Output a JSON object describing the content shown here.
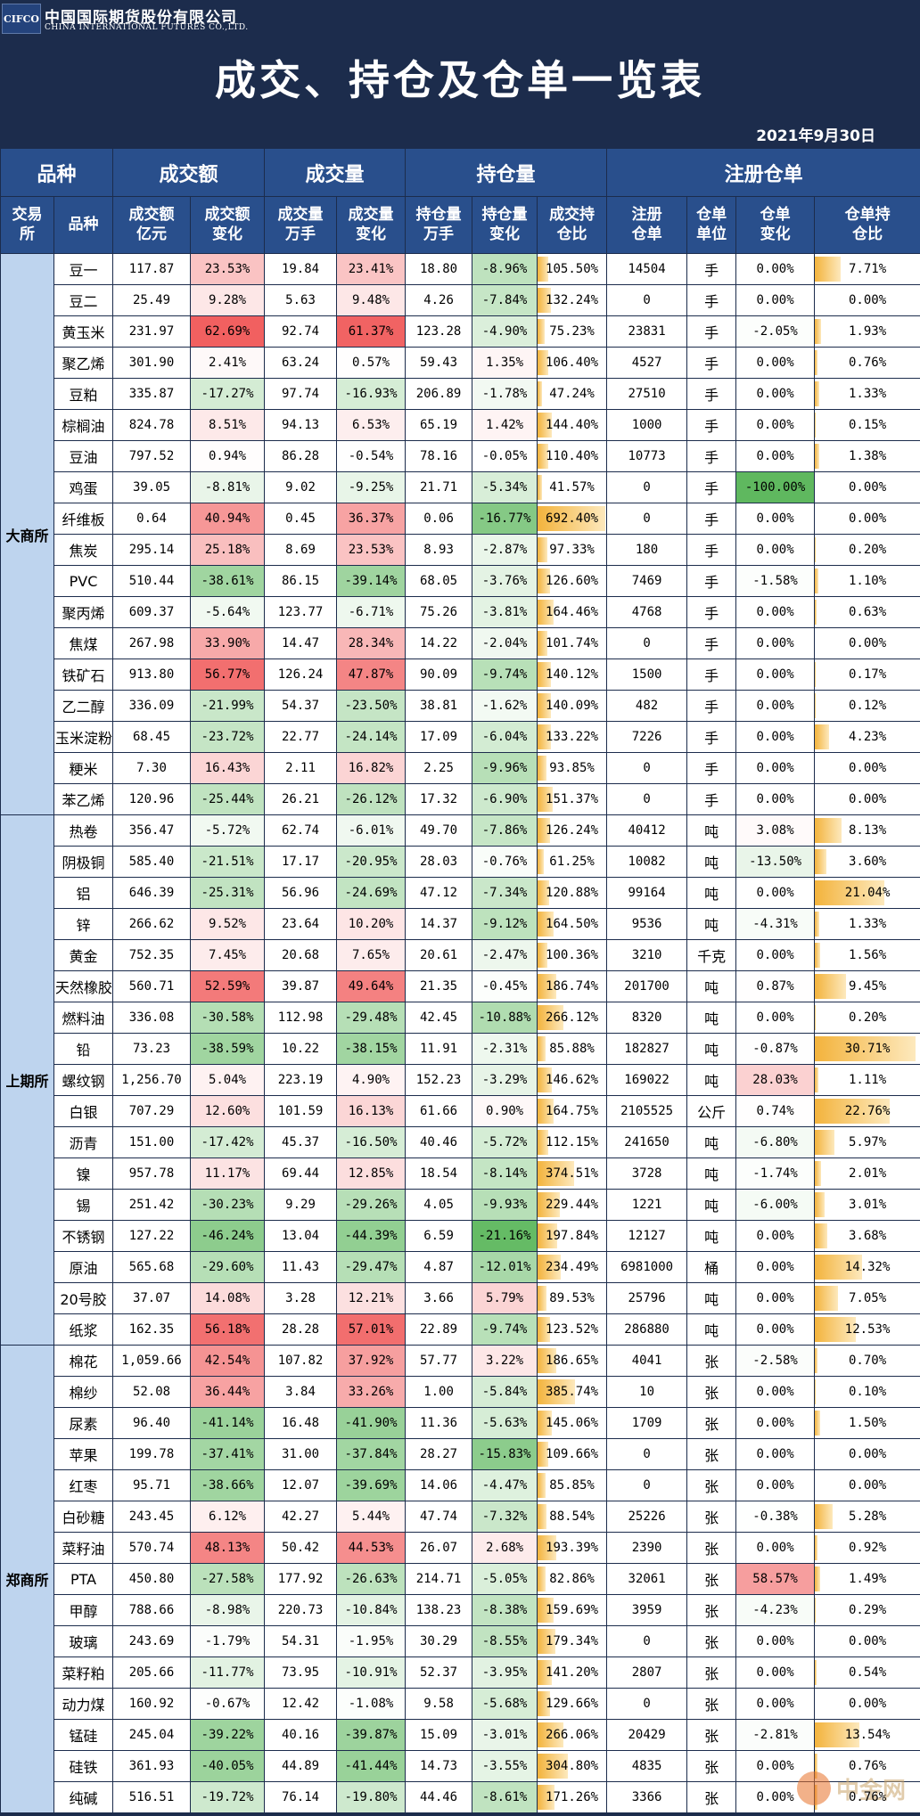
{
  "header": {
    "logo_text": "CIFCO",
    "company_cn": "中国国际期货股份有限公司",
    "company_en": "CHINA INTERNATIONAL FUTURES CO.,LTD.",
    "title": "成交、持仓及仓单一览表",
    "date": "2021年9月30日"
  },
  "groups": [
    "品种",
    "成交额",
    "成交量",
    "持仓量",
    "注册仓单"
  ],
  "columns": [
    "交易所",
    "品种",
    "成交额亿元",
    "成交额变化",
    "成交量万手",
    "成交量变化",
    "持仓量万手",
    "持仓量变化",
    "成交持仓比",
    "注册仓单",
    "仓单单位",
    "仓单变化",
    "仓单持仓比"
  ],
  "colors": {
    "header_bg": "#1c2c4c",
    "group_bg": "#294f8c",
    "exchange_bg": "#bed4ee",
    "pos_max": "#f05a5a",
    "neg_max": "#5fb85f",
    "bar": "#f3b33c"
  },
  "exchanges": [
    {
      "name": "大商所",
      "rows": [
        [
          "豆一",
          "117.87",
          "23.53%",
          "19.84",
          "23.41%",
          "18.80",
          "-8.96%",
          "105.50%",
          "14504",
          "手",
          "0.00%",
          "7.71%"
        ],
        [
          "豆二",
          "25.49",
          "9.28%",
          "5.63",
          "9.48%",
          "4.26",
          "-7.84%",
          "132.24%",
          "0",
          "手",
          "0.00%",
          "0.00%"
        ],
        [
          "黄玉米",
          "231.97",
          "62.69%",
          "92.74",
          "61.37%",
          "123.28",
          "-4.90%",
          "75.23%",
          "23831",
          "手",
          "-2.05%",
          "1.93%"
        ],
        [
          "聚乙烯",
          "301.90",
          "2.41%",
          "63.24",
          "0.57%",
          "59.43",
          "1.35%",
          "106.40%",
          "4527",
          "手",
          "0.00%",
          "0.76%"
        ],
        [
          "豆粕",
          "335.87",
          "-17.27%",
          "97.74",
          "-16.93%",
          "206.89",
          "-1.78%",
          "47.24%",
          "27510",
          "手",
          "0.00%",
          "1.33%"
        ],
        [
          "棕榈油",
          "824.78",
          "8.51%",
          "94.13",
          "6.53%",
          "65.19",
          "1.42%",
          "144.40%",
          "1000",
          "手",
          "0.00%",
          "0.15%"
        ],
        [
          "豆油",
          "797.52",
          "0.94%",
          "86.28",
          "-0.54%",
          "78.16",
          "-0.05%",
          "110.40%",
          "10773",
          "手",
          "0.00%",
          "1.38%"
        ],
        [
          "鸡蛋",
          "39.05",
          "-8.81%",
          "9.02",
          "-9.25%",
          "21.71",
          "-5.34%",
          "41.57%",
          "0",
          "手",
          "-100.00%",
          "0.00%"
        ],
        [
          "纤维板",
          "0.64",
          "40.94%",
          "0.45",
          "36.37%",
          "0.06",
          "-16.77%",
          "692.40%",
          "0",
          "手",
          "0.00%",
          "0.00%"
        ],
        [
          "焦炭",
          "295.14",
          "25.18%",
          "8.69",
          "23.53%",
          "8.93",
          "-2.87%",
          "97.33%",
          "180",
          "手",
          "0.00%",
          "0.20%"
        ],
        [
          "PVC",
          "510.44",
          "-38.61%",
          "86.15",
          "-39.14%",
          "68.05",
          "-3.76%",
          "126.60%",
          "7469",
          "手",
          "-1.58%",
          "1.10%"
        ],
        [
          "聚丙烯",
          "609.37",
          "-5.64%",
          "123.77",
          "-6.71%",
          "75.26",
          "-3.81%",
          "164.46%",
          "4768",
          "手",
          "0.00%",
          "0.63%"
        ],
        [
          "焦煤",
          "267.98",
          "33.90%",
          "14.47",
          "28.34%",
          "14.22",
          "-2.04%",
          "101.74%",
          "0",
          "手",
          "0.00%",
          "0.00%"
        ],
        [
          "铁矿石",
          "913.80",
          "56.77%",
          "126.24",
          "47.87%",
          "90.09",
          "-9.74%",
          "140.12%",
          "1500",
          "手",
          "0.00%",
          "0.17%"
        ],
        [
          "乙二醇",
          "336.09",
          "-21.99%",
          "54.37",
          "-23.50%",
          "38.81",
          "-1.62%",
          "140.09%",
          "482",
          "手",
          "0.00%",
          "0.12%"
        ],
        [
          "玉米淀粉",
          "68.45",
          "-23.72%",
          "22.77",
          "-24.14%",
          "17.09",
          "-6.04%",
          "133.22%",
          "7226",
          "手",
          "0.00%",
          "4.23%"
        ],
        [
          "粳米",
          "7.30",
          "16.43%",
          "2.11",
          "16.82%",
          "2.25",
          "-9.96%",
          "93.85%",
          "0",
          "手",
          "0.00%",
          "0.00%"
        ],
        [
          "苯乙烯",
          "120.96",
          "-25.44%",
          "26.21",
          "-26.12%",
          "17.32",
          "-6.90%",
          "151.37%",
          "0",
          "手",
          "0.00%",
          "0.00%"
        ]
      ]
    },
    {
      "name": "上期所",
      "rows": [
        [
          "热卷",
          "356.47",
          "-5.72%",
          "62.74",
          "-6.01%",
          "49.70",
          "-7.86%",
          "126.24%",
          "40412",
          "吨",
          "3.08%",
          "8.13%"
        ],
        [
          "阴极铜",
          "585.40",
          "-21.51%",
          "17.17",
          "-20.95%",
          "28.03",
          "-0.76%",
          "61.25%",
          "10082",
          "吨",
          "-13.50%",
          "3.60%"
        ],
        [
          "铝",
          "646.39",
          "-25.31%",
          "56.96",
          "-24.69%",
          "47.12",
          "-7.34%",
          "120.88%",
          "99164",
          "吨",
          "0.00%",
          "21.04%"
        ],
        [
          "锌",
          "266.62",
          "9.52%",
          "23.64",
          "10.20%",
          "14.37",
          "-9.12%",
          "164.50%",
          "9536",
          "吨",
          "-4.31%",
          "1.33%"
        ],
        [
          "黄金",
          "752.35",
          "7.45%",
          "20.68",
          "7.65%",
          "20.61",
          "-2.47%",
          "100.36%",
          "3210",
          "千克",
          "0.00%",
          "1.56%"
        ],
        [
          "天然橡胶",
          "560.71",
          "52.59%",
          "39.87",
          "49.64%",
          "21.35",
          "-0.45%",
          "186.74%",
          "201700",
          "吨",
          "0.87%",
          "9.45%"
        ],
        [
          "燃料油",
          "336.08",
          "-30.58%",
          "112.98",
          "-29.48%",
          "42.45",
          "-10.88%",
          "266.12%",
          "8320",
          "吨",
          "0.00%",
          "0.20%"
        ],
        [
          "铅",
          "73.23",
          "-38.59%",
          "10.22",
          "-38.15%",
          "11.91",
          "-2.31%",
          "85.88%",
          "182827",
          "吨",
          "-0.87%",
          "30.71%"
        ],
        [
          "螺纹钢",
          "1,256.70",
          "5.04%",
          "223.19",
          "4.90%",
          "152.23",
          "-3.29%",
          "146.62%",
          "169022",
          "吨",
          "28.03%",
          "1.11%"
        ],
        [
          "白银",
          "707.29",
          "12.60%",
          "101.59",
          "16.13%",
          "61.66",
          "0.90%",
          "164.75%",
          "2105525",
          "公斤",
          "0.74%",
          "22.76%"
        ],
        [
          "沥青",
          "151.00",
          "-17.42%",
          "45.37",
          "-16.50%",
          "40.46",
          "-5.72%",
          "112.15%",
          "241650",
          "吨",
          "-6.80%",
          "5.97%"
        ],
        [
          "镍",
          "957.78",
          "11.17%",
          "69.44",
          "12.85%",
          "18.54",
          "-8.14%",
          "374.51%",
          "3728",
          "吨",
          "-1.74%",
          "2.01%"
        ],
        [
          "锡",
          "251.42",
          "-30.23%",
          "9.29",
          "-29.26%",
          "4.05",
          "-9.93%",
          "229.44%",
          "1221",
          "吨",
          "-6.00%",
          "3.01%"
        ],
        [
          "不锈钢",
          "127.22",
          "-46.24%",
          "13.04",
          "-44.39%",
          "6.59",
          "-21.16%",
          "197.84%",
          "12127",
          "吨",
          "0.00%",
          "3.68%"
        ],
        [
          "原油",
          "565.68",
          "-29.60%",
          "11.43",
          "-29.47%",
          "4.87",
          "-12.01%",
          "234.49%",
          "6981000",
          "桶",
          "0.00%",
          "14.32%"
        ],
        [
          "20号胶",
          "37.07",
          "14.08%",
          "3.28",
          "12.21%",
          "3.66",
          "5.79%",
          "89.53%",
          "25796",
          "吨",
          "0.00%",
          "7.05%"
        ],
        [
          "纸浆",
          "162.35",
          "56.18%",
          "28.28",
          "57.01%",
          "22.89",
          "-9.74%",
          "123.52%",
          "286880",
          "吨",
          "0.00%",
          "12.53%"
        ]
      ]
    },
    {
      "name": "郑商所",
      "rows": [
        [
          "棉花",
          "1,059.66",
          "42.54%",
          "107.82",
          "37.92%",
          "57.77",
          "3.22%",
          "186.65%",
          "4041",
          "张",
          "-2.58%",
          "0.70%"
        ],
        [
          "棉纱",
          "52.08",
          "36.44%",
          "3.84",
          "33.26%",
          "1.00",
          "-5.84%",
          "385.74%",
          "10",
          "张",
          "0.00%",
          "0.10%"
        ],
        [
          "尿素",
          "96.40",
          "-41.14%",
          "16.48",
          "-41.90%",
          "11.36",
          "-5.63%",
          "145.06%",
          "1709",
          "张",
          "0.00%",
          "1.50%"
        ],
        [
          "苹果",
          "199.78",
          "-37.41%",
          "31.00",
          "-37.84%",
          "28.27",
          "-15.83%",
          "109.66%",
          "0",
          "张",
          "0.00%",
          "0.00%"
        ],
        [
          "红枣",
          "95.71",
          "-38.66%",
          "12.07",
          "-39.69%",
          "14.06",
          "-4.47%",
          "85.85%",
          "0",
          "张",
          "0.00%",
          "0.00%"
        ],
        [
          "白砂糖",
          "243.45",
          "6.12%",
          "42.27",
          "5.44%",
          "47.74",
          "-7.32%",
          "88.54%",
          "25226",
          "张",
          "-0.38%",
          "5.28%"
        ],
        [
          "菜籽油",
          "570.74",
          "48.13%",
          "50.42",
          "44.53%",
          "26.07",
          "2.68%",
          "193.39%",
          "2390",
          "张",
          "0.00%",
          "0.92%"
        ],
        [
          "PTA",
          "450.80",
          "-27.58%",
          "177.92",
          "-26.63%",
          "214.71",
          "-5.05%",
          "82.86%",
          "32061",
          "张",
          "58.57%",
          "1.49%"
        ],
        [
          "甲醇",
          "788.66",
          "-8.98%",
          "220.73",
          "-10.84%",
          "138.23",
          "-8.38%",
          "159.69%",
          "3959",
          "张",
          "-4.23%",
          "0.29%"
        ],
        [
          "玻璃",
          "243.69",
          "-1.79%",
          "54.31",
          "-1.95%",
          "30.29",
          "-8.55%",
          "179.34%",
          "0",
          "张",
          "0.00%",
          "0.00%"
        ],
        [
          "菜籽粕",
          "205.66",
          "-11.77%",
          "73.95",
          "-10.91%",
          "52.37",
          "-3.95%",
          "141.20%",
          "2807",
          "张",
          "0.00%",
          "0.54%"
        ],
        [
          "动力煤",
          "160.92",
          "-0.67%",
          "12.42",
          "-1.08%",
          "9.58",
          "-5.68%",
          "129.66%",
          "0",
          "张",
          "0.00%",
          "0.00%"
        ],
        [
          "锰硅",
          "245.04",
          "-39.22%",
          "40.16",
          "-39.87%",
          "15.09",
          "-3.01%",
          "266.06%",
          "20429",
          "张",
          "-2.81%",
          "13.54%"
        ],
        [
          "硅铁",
          "361.93",
          "-40.05%",
          "44.89",
          "-41.44%",
          "14.73",
          "-3.55%",
          "304.80%",
          "4835",
          "张",
          "0.00%",
          "0.76%"
        ],
        [
          "纯碱",
          "516.51",
          "-19.72%",
          "76.14",
          "-19.80%",
          "44.46",
          "-8.61%",
          "171.26%",
          "3366",
          "张",
          "0.00%",
          "0.76%"
        ]
      ]
    }
  ],
  "watermark": {
    "text": "中金网"
  }
}
